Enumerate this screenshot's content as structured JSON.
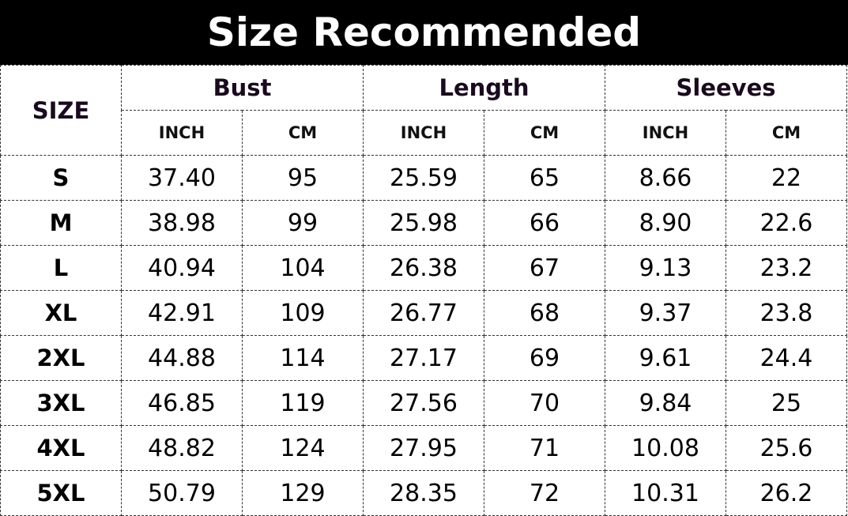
{
  "title": "Size Recommended",
  "header": {
    "size": "SIZE",
    "groups": [
      "Bust",
      "Length",
      "Sleeves"
    ],
    "units": [
      "INCH",
      "CM",
      "INCH",
      "CM",
      "INCH",
      "CM"
    ]
  },
  "rows": [
    [
      "S",
      "37.40",
      "95",
      "25.59",
      "65",
      "8.66",
      "22"
    ],
    [
      "M",
      "38.98",
      "99",
      "25.98",
      "66",
      "8.90",
      "22.6"
    ],
    [
      "L",
      "40.94",
      "104",
      "26.38",
      "67",
      "9.13",
      "23.2"
    ],
    [
      "XL",
      "42.91",
      "109",
      "26.77",
      "68",
      "9.37",
      "23.8"
    ],
    [
      "2XL",
      "44.88",
      "114",
      "27.17",
      "69",
      "9.61",
      "24.4"
    ],
    [
      "3XL",
      "46.85",
      "119",
      "27.56",
      "70",
      "9.84",
      "25"
    ],
    [
      "4XL",
      "48.82",
      "124",
      "27.95",
      "71",
      "10.08",
      "25.6"
    ],
    [
      "5XL",
      "50.79",
      "129",
      "28.35",
      "72",
      "10.31",
      "26.2"
    ]
  ]
}
